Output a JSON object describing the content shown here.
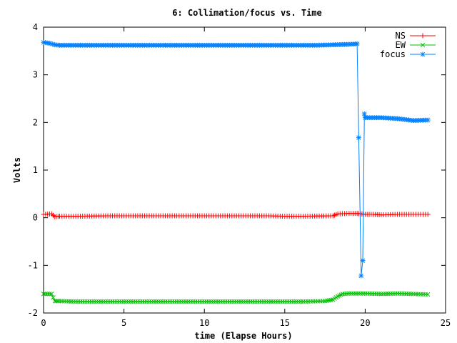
{
  "chart_data": {
    "type": "line",
    "title": "6: Collimation/focus vs. Time",
    "xlabel": "time (Elapse Hours)",
    "ylabel": "Volts",
    "xlim": [
      0,
      25
    ],
    "ylim": [
      -2,
      4
    ],
    "xticks": [
      0,
      5,
      10,
      15,
      20,
      25
    ],
    "yticks": [
      -2,
      -1,
      0,
      1,
      2,
      3,
      4
    ],
    "grid": false,
    "legend_position": "top-right",
    "series": [
      {
        "name": "NS",
        "color": "#ff0000",
        "marker": "plus",
        "points": [
          [
            0,
            0.07
          ],
          [
            0.5,
            0.08
          ],
          [
            0.7,
            0.02
          ],
          [
            1,
            0.03
          ],
          [
            2,
            0.03
          ],
          [
            4,
            0.04
          ],
          [
            6,
            0.04
          ],
          [
            8,
            0.04
          ],
          [
            10,
            0.04
          ],
          [
            12,
            0.04
          ],
          [
            14,
            0.04
          ],
          [
            15,
            0.03
          ],
          [
            16,
            0.03
          ],
          [
            18,
            0.04
          ],
          [
            18.3,
            0.08
          ],
          [
            19,
            0.09
          ],
          [
            19.5,
            0.09
          ],
          [
            19.7,
            0.08
          ],
          [
            20,
            0.07
          ],
          [
            20.5,
            0.07
          ],
          [
            21,
            0.06
          ],
          [
            22,
            0.07
          ],
          [
            23,
            0.07
          ],
          [
            23.9,
            0.07
          ]
        ]
      },
      {
        "name": "EW",
        "color": "#00c000",
        "marker": "x",
        "points": [
          [
            0,
            -1.6
          ],
          [
            0.5,
            -1.6
          ],
          [
            0.7,
            -1.75
          ],
          [
            1,
            -1.75
          ],
          [
            2,
            -1.76
          ],
          [
            4,
            -1.76
          ],
          [
            6,
            -1.76
          ],
          [
            8,
            -1.76
          ],
          [
            10,
            -1.76
          ],
          [
            12,
            -1.76
          ],
          [
            14,
            -1.76
          ],
          [
            16,
            -1.76
          ],
          [
            17.5,
            -1.75
          ],
          [
            18,
            -1.72
          ],
          [
            18.3,
            -1.65
          ],
          [
            18.6,
            -1.6
          ],
          [
            19,
            -1.59
          ],
          [
            20,
            -1.59
          ],
          [
            21,
            -1.6
          ],
          [
            22,
            -1.59
          ],
          [
            23,
            -1.6
          ],
          [
            23.9,
            -1.61
          ]
        ]
      },
      {
        "name": "focus",
        "color": "#0080ff",
        "marker": "star",
        "points": [
          [
            0,
            3.68
          ],
          [
            0.4,
            3.66
          ],
          [
            0.7,
            3.63
          ],
          [
            1,
            3.62
          ],
          [
            3,
            3.62
          ],
          [
            5,
            3.62
          ],
          [
            7,
            3.62
          ],
          [
            9,
            3.62
          ],
          [
            11,
            3.62
          ],
          [
            13,
            3.62
          ],
          [
            15,
            3.62
          ],
          [
            17,
            3.62
          ],
          [
            18,
            3.63
          ],
          [
            19,
            3.64
          ],
          [
            19.5,
            3.65
          ],
          [
            19.6,
            1.68
          ],
          [
            19.75,
            -1.22
          ],
          [
            19.85,
            -0.9
          ],
          [
            19.95,
            2.18
          ],
          [
            20,
            2.1
          ],
          [
            21,
            2.1
          ],
          [
            22,
            2.08
          ],
          [
            23,
            2.04
          ],
          [
            23.9,
            2.05
          ]
        ]
      }
    ]
  }
}
